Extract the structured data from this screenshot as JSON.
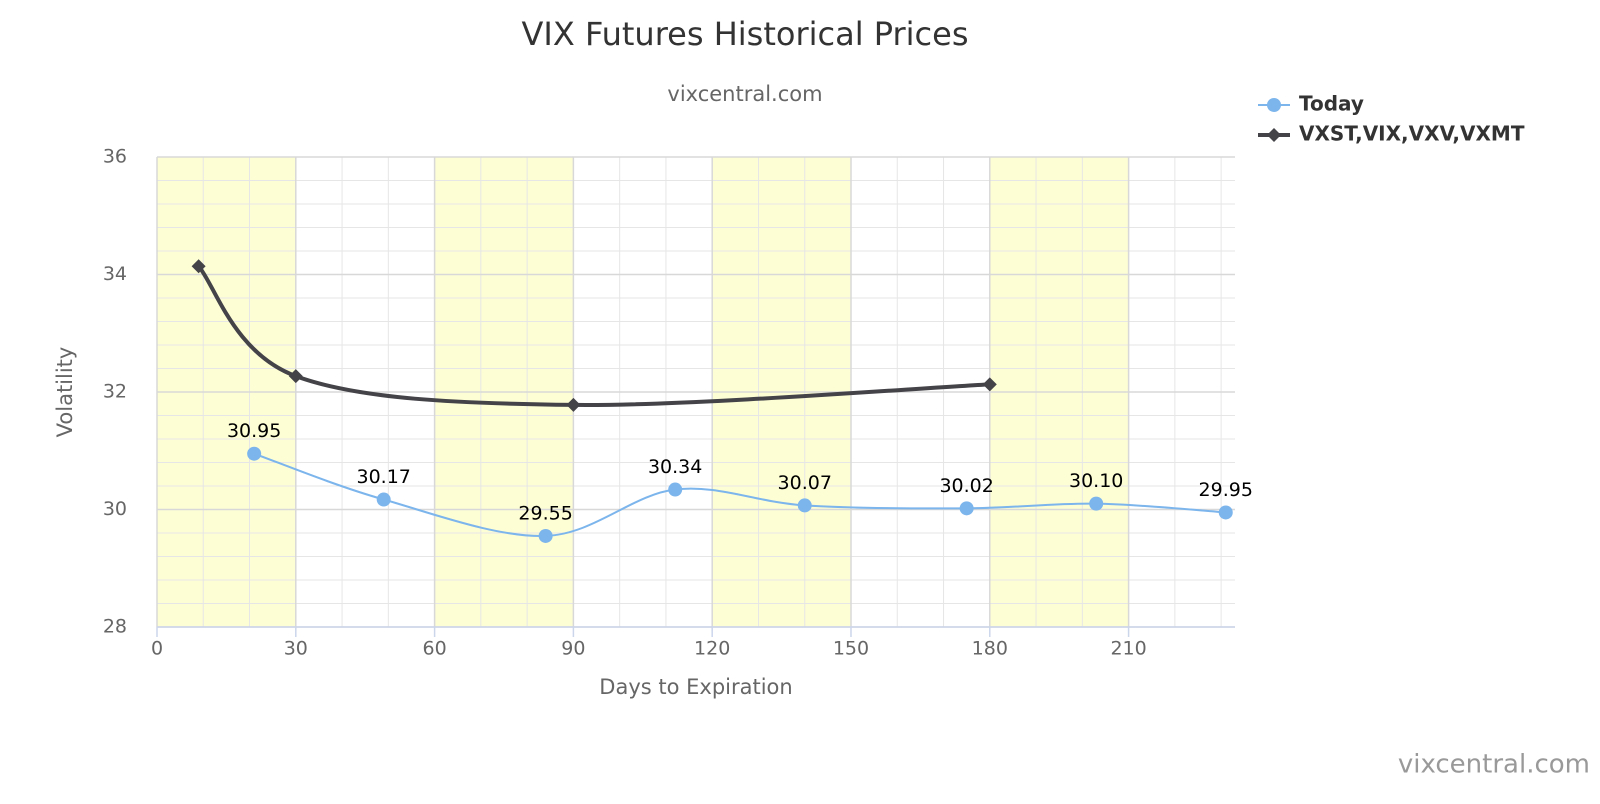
{
  "chart_data": {
    "type": "line",
    "title": "VIX Futures Historical Prices",
    "subtitle": "vixcentral.com",
    "credits": "vixcentral.com",
    "x_label": "Days to Expiration",
    "y_label": "Volatility",
    "xlim": [
      0,
      233
    ],
    "xticks": [
      0,
      30,
      60,
      90,
      120,
      150,
      180,
      210
    ],
    "ylim": [
      28,
      36
    ],
    "yticks": [
      28,
      30,
      32,
      34,
      36
    ],
    "grid": true,
    "smooth": true,
    "legend": "top-right",
    "plot_bands": [
      [
        0,
        30
      ],
      [
        60,
        90
      ],
      [
        120,
        150
      ],
      [
        180,
        210
      ]
    ],
    "band_color": "#fefed5",
    "series": [
      {
        "name": "Today",
        "color": "#7cb5ec",
        "marker": "circle",
        "x": [
          21,
          49,
          84,
          112,
          140,
          175,
          203,
          231
        ],
        "values": [
          30.95,
          30.17,
          29.55,
          30.34,
          30.07,
          30.02,
          30.1,
          29.95
        ],
        "value_labels": [
          "30.95",
          "30.17",
          "29.55",
          "30.34",
          "30.07",
          "30.02",
          "30.10",
          "29.95"
        ]
      },
      {
        "name": "VXST,VIX,VXV,VXMT",
        "color": "#434348",
        "marker": "diamond",
        "x": [
          9,
          30,
          90,
          180
        ],
        "values": [
          34.14,
          32.27,
          31.78,
          32.13
        ]
      }
    ]
  }
}
